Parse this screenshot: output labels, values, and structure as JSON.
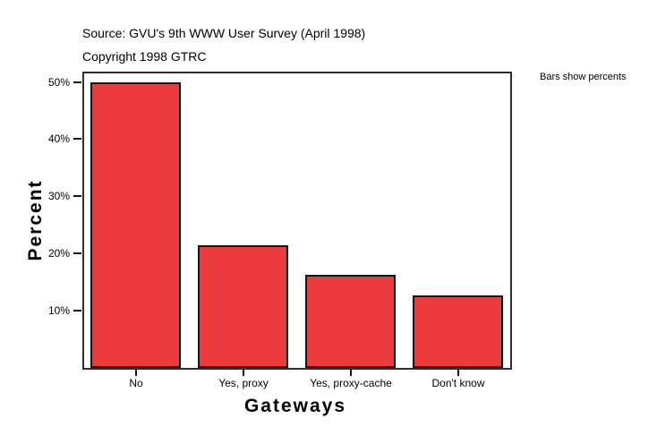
{
  "header": {
    "source_line": "Source: GVU's 9th WWW User Survey (April 1998)",
    "copyright_line": "Copyright 1998 GTRC"
  },
  "annotation": {
    "bars_note": "Bars show percents"
  },
  "chart_data": {
    "type": "bar",
    "title": "",
    "xlabel": "Gateways",
    "ylabel": "Percent",
    "categories": [
      "No",
      "Yes, proxy",
      "Yes, proxy-cache",
      "Don't know"
    ],
    "values": [
      50.0,
      21.4,
      16.3,
      12.7
    ],
    "y_ticks": [
      {
        "value": 10,
        "label": "10%"
      },
      {
        "value": 20,
        "label": "20%"
      },
      {
        "value": 30,
        "label": "30%"
      },
      {
        "value": 40,
        "label": "40%"
      },
      {
        "value": 50,
        "label": "50%"
      }
    ],
    "ylim": [
      0,
      51.5
    ],
    "grid": false,
    "legend": "none",
    "bar_color": "#ED3A3D",
    "bar_border_color": "#161616",
    "axis_color": "#2e2e2e"
  }
}
